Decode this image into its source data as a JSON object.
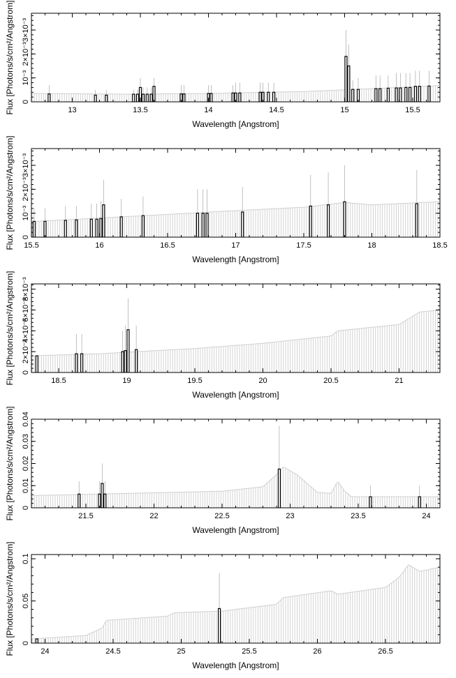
{
  "chart_data": [
    {
      "type": "bar",
      "xlabel": "Wavelength [Angstrom]",
      "ylabel": "Flux [Photons/s/cm²/Angstrom]",
      "xlim": [
        12.7,
        15.7
      ],
      "ylim": [
        0,
        0.0037
      ],
      "x_ticks": [
        13,
        13.5,
        14,
        14.5,
        15,
        15.5
      ],
      "x_tick_labels": [
        "13",
        "13.5",
        "14",
        "14.5",
        "15",
        "15.5"
      ],
      "y_ticks": [
        0,
        0.001,
        0.002,
        0.003
      ],
      "y_tick_labels": [
        "0",
        "10⁻³",
        "2×10⁻³",
        "3×10⁻³"
      ],
      "continuum": [
        [
          12.7,
          0.00035
        ],
        [
          13.4,
          0.00032
        ],
        [
          14.0,
          0.00035
        ],
        [
          14.7,
          0.00043
        ],
        [
          15.2,
          0.00055
        ],
        [
          15.7,
          0.00068
        ]
      ],
      "lines": [
        {
          "x": 12.83,
          "flux": 0.00033,
          "err": 0.0007
        },
        {
          "x": 13.17,
          "flux": 0.00028,
          "err": 0.0005
        },
        {
          "x": 13.25,
          "flux": 0.00028,
          "err": 0.0005
        },
        {
          "x": 13.45,
          "flux": 0.00032,
          "err": 0.0005
        },
        {
          "x": 13.48,
          "flux": 0.00032,
          "err": 0.0005
        },
        {
          "x": 13.5,
          "flux": 0.0006,
          "err": 0.001
        },
        {
          "x": 13.52,
          "flux": 0.00032,
          "err": 0.0006
        },
        {
          "x": 13.55,
          "flux": 0.00032,
          "err": 0.0006
        },
        {
          "x": 13.58,
          "flux": 0.00032,
          "err": 0.0006
        },
        {
          "x": 13.6,
          "flux": 0.00065,
          "err": 0.001
        },
        {
          "x": 13.8,
          "flux": 0.00033,
          "err": 0.0007
        },
        {
          "x": 13.82,
          "flux": 0.00033,
          "err": 0.0007
        },
        {
          "x": 14.0,
          "flux": 0.00035,
          "err": 0.0007
        },
        {
          "x": 14.02,
          "flux": 0.00035,
          "err": 0.0007
        },
        {
          "x": 14.18,
          "flux": 0.00037,
          "err": 0.0007
        },
        {
          "x": 14.2,
          "flux": 0.00037,
          "err": 0.0008
        },
        {
          "x": 14.23,
          "flux": 0.00037,
          "err": 0.0008
        },
        {
          "x": 14.38,
          "flux": 0.0004,
          "err": 0.0008
        },
        {
          "x": 14.4,
          "flux": 0.0004,
          "err": 0.0008
        },
        {
          "x": 14.44,
          "flux": 0.0004,
          "err": 0.0008
        },
        {
          "x": 14.48,
          "flux": 0.0004,
          "err": 0.0008
        },
        {
          "x": 15.01,
          "flux": 0.0019,
          "err": 0.003
        },
        {
          "x": 15.03,
          "flux": 0.0015,
          "err": 0.0024
        },
        {
          "x": 15.06,
          "flux": 0.00052,
          "err": 0.0009
        },
        {
          "x": 15.1,
          "flux": 0.00052,
          "err": 0.001
        },
        {
          "x": 15.23,
          "flux": 0.00055,
          "err": 0.0011
        },
        {
          "x": 15.26,
          "flux": 0.00055,
          "err": 0.0011
        },
        {
          "x": 15.32,
          "flux": 0.00057,
          "err": 0.0011
        },
        {
          "x": 15.38,
          "flux": 0.00058,
          "err": 0.0012
        },
        {
          "x": 15.41,
          "flux": 0.00058,
          "err": 0.0012
        },
        {
          "x": 15.45,
          "flux": 0.0006,
          "err": 0.0012
        },
        {
          "x": 15.48,
          "flux": 0.0006,
          "err": 0.0012
        },
        {
          "x": 15.52,
          "flux": 0.00065,
          "err": 0.0013
        },
        {
          "x": 15.55,
          "flux": 0.00065,
          "err": 0.0013
        },
        {
          "x": 15.62,
          "flux": 0.00066,
          "err": 0.0013
        }
      ]
    },
    {
      "type": "bar",
      "xlabel": "Wavelength [Angstrom]",
      "ylabel": "Flux [Photons/s/cm²/Angstrom]",
      "xlim": [
        15.5,
        18.5
      ],
      "ylim": [
        0,
        0.0037
      ],
      "x_ticks": [
        15.5,
        16,
        16.5,
        17,
        17.5,
        18,
        18.5
      ],
      "x_tick_labels": [
        "15.5",
        "16",
        "16.5",
        "17",
        "17.5",
        "18",
        "18.5"
      ],
      "y_ticks": [
        0,
        0.001,
        0.002,
        0.003
      ],
      "y_tick_labels": [
        "0",
        "10⁻³",
        "2×10⁻³",
        "3×10⁻³"
      ],
      "continuum": [
        [
          15.5,
          0.00065
        ],
        [
          16.0,
          0.0008
        ],
        [
          16.5,
          0.00095
        ],
        [
          16.9,
          0.00108
        ],
        [
          17.5,
          0.00125
        ],
        [
          17.8,
          0.00145
        ],
        [
          18.0,
          0.00135
        ],
        [
          18.5,
          0.00148
        ]
      ],
      "lines": [
        {
          "x": 15.52,
          "flux": 0.00066,
          "err": 0.0012
        },
        {
          "x": 15.6,
          "flux": 0.00066,
          "err": 0.0012
        },
        {
          "x": 15.75,
          "flux": 0.0007,
          "err": 0.0013
        },
        {
          "x": 15.83,
          "flux": 0.00072,
          "err": 0.0013
        },
        {
          "x": 15.94,
          "flux": 0.00075,
          "err": 0.0014
        },
        {
          "x": 15.98,
          "flux": 0.00075,
          "err": 0.0014
        },
        {
          "x": 16.01,
          "flux": 0.00078,
          "err": 0.0015
        },
        {
          "x": 16.03,
          "flux": 0.00135,
          "err": 0.0024
        },
        {
          "x": 16.16,
          "flux": 0.00085,
          "err": 0.0016
        },
        {
          "x": 16.32,
          "flux": 0.0009,
          "err": 0.0017
        },
        {
          "x": 16.72,
          "flux": 0.001,
          "err": 0.002
        },
        {
          "x": 16.76,
          "flux": 0.001,
          "err": 0.002
        },
        {
          "x": 16.79,
          "flux": 0.001,
          "err": 0.002
        },
        {
          "x": 17.05,
          "flux": 0.00105,
          "err": 0.0021
        },
        {
          "x": 17.55,
          "flux": 0.0013,
          "err": 0.0026
        },
        {
          "x": 17.68,
          "flux": 0.00135,
          "err": 0.0027
        },
        {
          "x": 17.8,
          "flux": 0.00148,
          "err": 0.003
        },
        {
          "x": 18.33,
          "flux": 0.0014,
          "err": 0.0028
        }
      ]
    },
    {
      "type": "bar",
      "xlabel": "Wavelength [Angstrom]",
      "ylabel": "Flux [Photons/s/cm²/Angstrom]",
      "xlim": [
        18.3,
        21.3
      ],
      "ylim": [
        0,
        0.0085
      ],
      "x_ticks": [
        18.5,
        19,
        19.5,
        20,
        20.5,
        21
      ],
      "x_tick_labels": [
        "18.5",
        "19",
        "19.5",
        "20",
        "20.5",
        "21"
      ],
      "y_ticks": [
        0,
        0.002,
        0.004,
        0.006,
        0.008
      ],
      "y_tick_labels": [
        "0",
        "2×10⁻³",
        "4×10⁻³",
        "6×10⁻³",
        "8×10⁻³"
      ],
      "continuum": [
        [
          18.3,
          0.0016
        ],
        [
          18.8,
          0.0018
        ],
        [
          19.5,
          0.0023
        ],
        [
          20.0,
          0.0028
        ],
        [
          20.5,
          0.0035
        ],
        [
          20.55,
          0.004
        ],
        [
          21.0,
          0.0046
        ],
        [
          21.15,
          0.0058
        ],
        [
          21.3,
          0.006
        ]
      ],
      "lines": [
        {
          "x": 18.34,
          "flux": 0.0016,
          "err": 0.0016
        },
        {
          "x": 18.63,
          "flux": 0.0018,
          "err": 0.0037
        },
        {
          "x": 18.67,
          "flux": 0.0018,
          "err": 0.0037
        },
        {
          "x": 18.97,
          "flux": 0.002,
          "err": 0.004
        },
        {
          "x": 18.99,
          "flux": 0.0021,
          "err": 0.0045
        },
        {
          "x": 19.01,
          "flux": 0.0041,
          "err": 0.0071
        },
        {
          "x": 19.07,
          "flux": 0.0022,
          "err": 0.0045
        }
      ]
    },
    {
      "type": "bar",
      "xlabel": "Wavelength [Angstrom]",
      "ylabel": "Flux [Photons/s/cm²/Angstrom]",
      "xlim": [
        21.1,
        24.1
      ],
      "ylim": [
        0,
        0.04
      ],
      "x_ticks": [
        21.5,
        22,
        22.5,
        23,
        23.5,
        24
      ],
      "x_tick_labels": [
        "21.5",
        "22",
        "22.5",
        "23",
        "23.5",
        "24"
      ],
      "y_ticks": [
        0,
        0.01,
        0.02,
        0.03,
        0.04
      ],
      "y_tick_labels": [
        "0",
        "0.01",
        "0.02",
        "0.03",
        "0.04"
      ],
      "continuum": [
        [
          21.1,
          0.0055
        ],
        [
          21.8,
          0.0065
        ],
        [
          22.5,
          0.0075
        ],
        [
          22.8,
          0.0095
        ],
        [
          22.9,
          0.015
        ],
        [
          22.95,
          0.0185
        ],
        [
          23.05,
          0.015
        ],
        [
          23.2,
          0.007
        ],
        [
          23.3,
          0.0065
        ],
        [
          23.35,
          0.012
        ],
        [
          23.4,
          0.0075
        ],
        [
          23.45,
          0.005
        ],
        [
          24.1,
          0.005
        ]
      ],
      "lines": [
        {
          "x": 21.45,
          "flux": 0.0062,
          "err": 0.012
        },
        {
          "x": 21.6,
          "flux": 0.0062,
          "err": 0.012
        },
        {
          "x": 21.62,
          "flux": 0.011,
          "err": 0.02
        },
        {
          "x": 21.64,
          "flux": 0.0062,
          "err": 0.012
        },
        {
          "x": 22.92,
          "flux": 0.0175,
          "err": 0.037
        },
        {
          "x": 23.59,
          "flux": 0.005,
          "err": 0.01
        },
        {
          "x": 23.95,
          "flux": 0.005,
          "err": 0.01
        }
      ]
    },
    {
      "type": "bar",
      "xlabel": "Wavelength [Angstrom]",
      "ylabel": "Flux [Photons/s/cm²/Angstrom]",
      "xlim": [
        23.9,
        26.9
      ],
      "ylim": [
        0,
        0.105
      ],
      "x_ticks": [
        24,
        24.5,
        25,
        25.5,
        26,
        26.5
      ],
      "x_tick_labels": [
        "24",
        "24.5",
        "25",
        "25.5",
        "26",
        "26.5"
      ],
      "y_ticks": [
        0,
        0.05,
        0.1
      ],
      "y_tick_labels": [
        "0",
        "0.05",
        "0.1"
      ],
      "continuum": [
        [
          23.9,
          0.005
        ],
        [
          24.3,
          0.009
        ],
        [
          24.42,
          0.018
        ],
        [
          24.45,
          0.027
        ],
        [
          24.9,
          0.032
        ],
        [
          24.95,
          0.036
        ],
        [
          25.3,
          0.038
        ],
        [
          25.7,
          0.046
        ],
        [
          25.75,
          0.054
        ],
        [
          26.1,
          0.062
        ],
        [
          26.15,
          0.058
        ],
        [
          26.5,
          0.066
        ],
        [
          26.6,
          0.078
        ],
        [
          26.67,
          0.093
        ],
        [
          26.75,
          0.085
        ],
        [
          26.9,
          0.09
        ]
      ],
      "lines": [
        {
          "x": 23.94,
          "flux": 0.005,
          "err": 0.005
        },
        {
          "x": 25.28,
          "flux": 0.041,
          "err": 0.083
        }
      ]
    }
  ]
}
